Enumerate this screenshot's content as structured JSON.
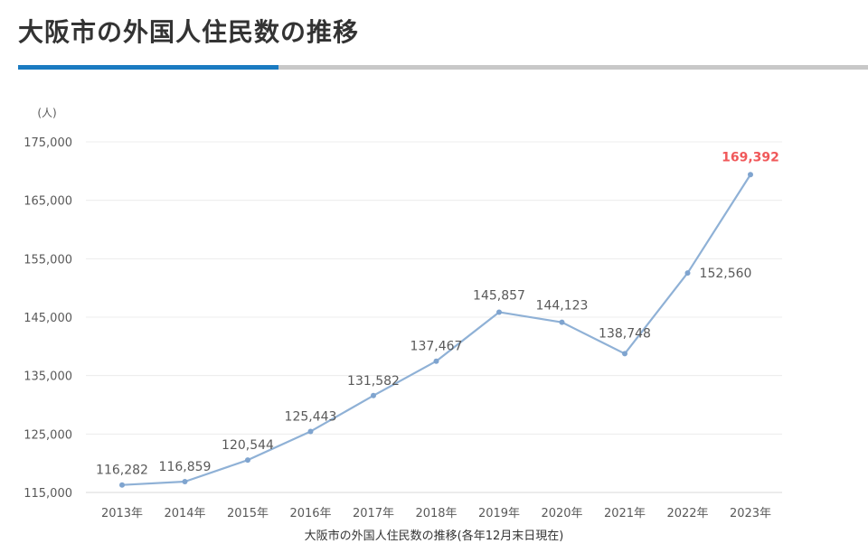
{
  "page": {
    "title": "大阪市の外国人住民数の推移",
    "caption": "大阪市の外国人住民数の推移(各年12月末日現在)"
  },
  "colors": {
    "line": "#8fb1d6",
    "point": "#7fa4cf",
    "highlight_label": "#f0585a",
    "label": "#595959",
    "grid": "#ececec",
    "title_accent": "#1a7bc1",
    "title_rule": "#c8c8c8"
  },
  "chart_data": {
    "type": "line",
    "unit_label": "(人)",
    "categories": [
      "2013年",
      "2014年",
      "2015年",
      "2016年",
      "2017年",
      "2018年",
      "2019年",
      "2020年",
      "2021年",
      "2022年",
      "2023年"
    ],
    "series": [
      {
        "values": [
          116282,
          116859,
          120544,
          125443,
          131582,
          137467,
          145857,
          144123,
          138748,
          152560,
          169392
        ]
      }
    ],
    "data_labels": [
      "116,282",
      "116,859",
      "120,544",
      "125,443",
      "131,582",
      "137,467",
      "145,857",
      "144,123",
      "138,748",
      "152,560",
      "169,392"
    ],
    "highlight_index": 10,
    "ylim": [
      115000,
      175000
    ],
    "yticks": [
      115000,
      125000,
      135000,
      145000,
      155000,
      165000,
      175000
    ],
    "ytick_labels": [
      "115,000",
      "125,000",
      "135,000",
      "145,000",
      "155,000",
      "165,000",
      "175,000"
    ],
    "grid": true,
    "legend": "none"
  }
}
